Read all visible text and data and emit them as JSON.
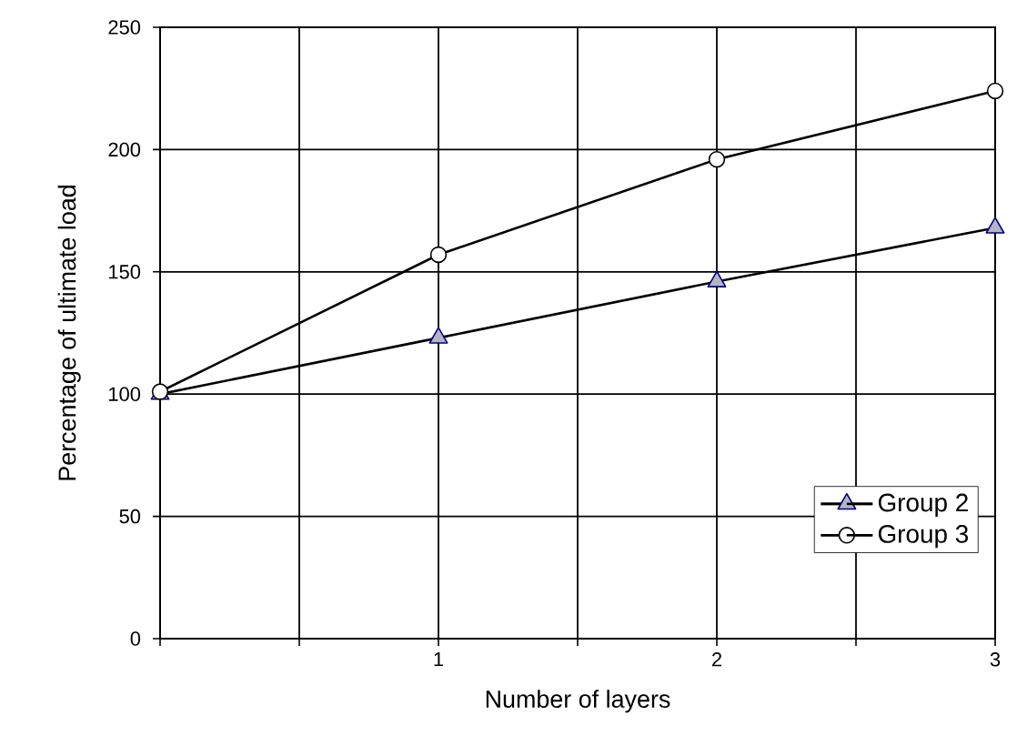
{
  "chart_data": {
    "type": "line",
    "xlabel": "Number of layers",
    "ylabel": "Percentage of ultimate load",
    "x": [
      0,
      1,
      2,
      3
    ],
    "series": [
      {
        "name": "Group 2",
        "color": "#b4b4c4",
        "marker": "triangle",
        "values": [
          100,
          123,
          146,
          168
        ]
      },
      {
        "name": "Group 3",
        "color": "#ffffff",
        "marker": "circle",
        "values": [
          101,
          157,
          196,
          224
        ]
      }
    ],
    "xlim": [
      0,
      3
    ],
    "ylim": [
      0,
      250
    ],
    "xticks": [
      {
        "value": 0,
        "label": null
      },
      {
        "value": 0.5,
        "label": null
      },
      1,
      {
        "value": 1.5,
        "label": null
      },
      2,
      {
        "value": 2.5,
        "label": null
      },
      3
    ],
    "yticks": [
      0,
      50,
      100,
      150,
      200,
      250
    ],
    "grid": true,
    "legend": "bottom right",
    "line_style": "solid"
  }
}
